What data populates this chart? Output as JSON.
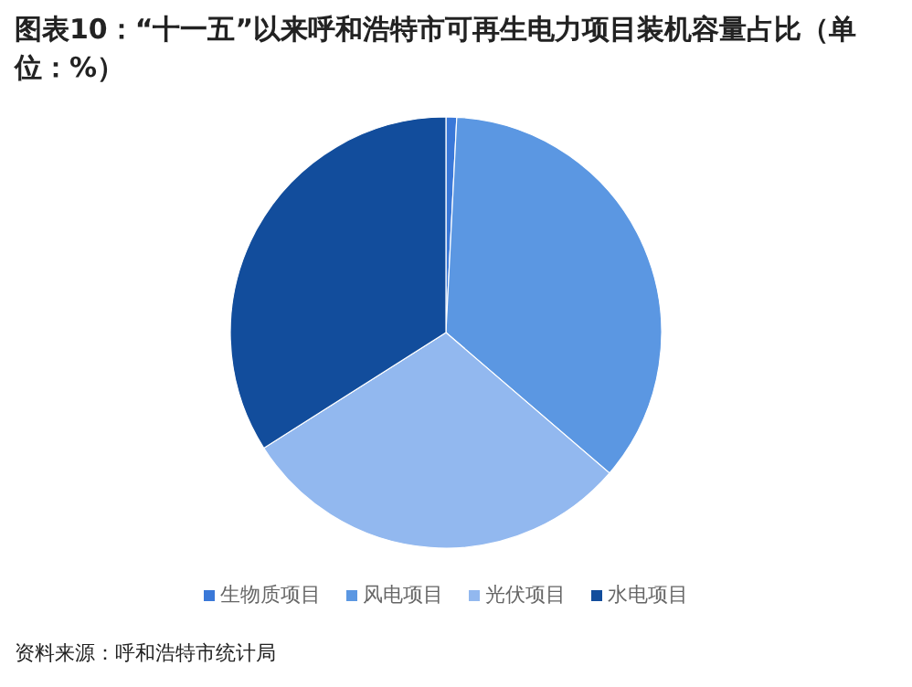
{
  "chart_data": {
    "type": "pie",
    "title": "图表10：“十一五”以来呼和浩特市可再生电力项目装机容量占比（单位：%）",
    "categories": [
      "生物质项目",
      "风电项目",
      "光伏项目",
      "水电项目"
    ],
    "values": [
      0.8,
      35.5,
      29.7,
      34.0
    ],
    "colors": [
      "#3a78d8",
      "#5b97e2",
      "#92b8ef",
      "#124d9c"
    ],
    "legend": "bottom",
    "annotations": [
      "资料来源：呼和浩特市统计局"
    ]
  }
}
